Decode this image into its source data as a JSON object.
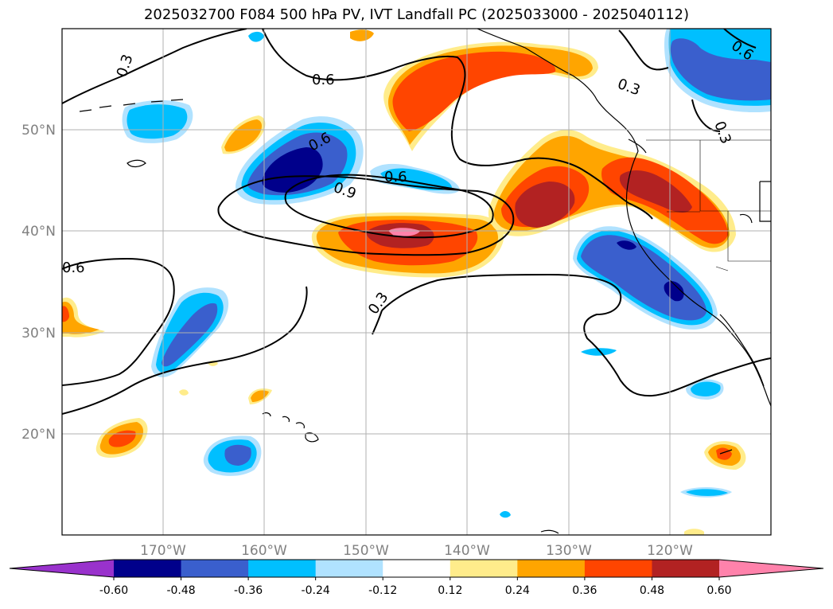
{
  "title": "2025032700 F084 500 hPa PV, IVT Landfall PC (2025033000 - 2025040112)",
  "map": {
    "lon_labels": [
      "170°W",
      "160°W",
      "150°W",
      "140°W",
      "130°W",
      "120°W"
    ],
    "lat_labels": [
      "50°N",
      "40°N",
      "30°N",
      "20°N"
    ],
    "contour_labels": [
      "0.3",
      "0.6",
      "0.6",
      "0.6",
      "0.9",
      "0.6",
      "0.3",
      "0.3",
      "0.6",
      "0.3"
    ],
    "gridlines": true,
    "coastlines": true
  },
  "colorbar": {
    "levels": [
      "-0.60",
      "-0.48",
      "-0.36",
      "-0.24",
      "-0.12",
      "0.12",
      "0.24",
      "0.36",
      "0.48",
      "0.60"
    ],
    "colors": [
      "#9932CC",
      "#00008B",
      "#3A5FCD",
      "#00BFFF",
      "#B0E2FF",
      "#FFFFFF",
      "#FFEC8B",
      "#FFA500",
      "#FF4500",
      "#B22222",
      "#FF82AB"
    ],
    "extend": "both"
  }
}
